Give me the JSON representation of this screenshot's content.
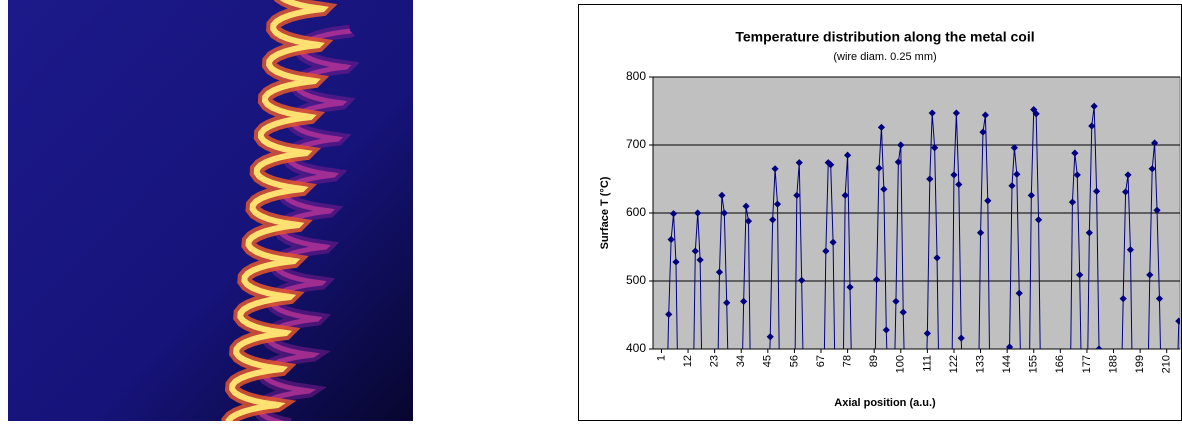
{
  "chart_data": {
    "type": "line",
    "title": "Temperature distribution along the metal coil",
    "subtitle": "(wire diam. 0.25 mm)",
    "x_label": "Axial position (a.u.)",
    "y_label": "Surface T (°C)",
    "color": "#000080",
    "marker": "diamond",
    "plot_background": "#c0c0c0",
    "grid": true,
    "xlim": [
      -2.5,
      215.5
    ],
    "xticks": [
      1,
      12,
      23,
      34,
      45,
      56,
      67,
      78,
      89,
      100,
      111,
      122,
      133,
      144,
      155,
      166,
      177,
      188,
      199,
      210
    ],
    "ylim": [
      400,
      800
    ],
    "yticks": [
      400,
      500,
      600,
      700,
      800
    ],
    "x": [
      3,
      4,
      5,
      6,
      7,
      8,
      14,
      15,
      16,
      17,
      18,
      24,
      25,
      26,
      27,
      28,
      29,
      34,
      35,
      36,
      37,
      38,
      45,
      46,
      47,
      48,
      49,
      50,
      56,
      57,
      58,
      59,
      60,
      68,
      69,
      70,
      71,
      72,
      73,
      76,
      77,
      78,
      79,
      80,
      89,
      90,
      91,
      92,
      93,
      94,
      95,
      97,
      98,
      99,
      100,
      101,
      102,
      110,
      111,
      112,
      113,
      114,
      115,
      116,
      121,
      122,
      123,
      124,
      125,
      126,
      132,
      133,
      134,
      135,
      136,
      137,
      144,
      145,
      146,
      147,
      148,
      149,
      150,
      153,
      154,
      155,
      156,
      157,
      158,
      170,
      171,
      172,
      173,
      174,
      175,
      177,
      178,
      179,
      180,
      181,
      182,
      183,
      191,
      192,
      193,
      194,
      195,
      196,
      202,
      203,
      204,
      205,
      206,
      207,
      208,
      214,
      215
    ],
    "values": [
      300,
      451,
      561,
      599,
      528,
      300,
      300,
      544,
      600,
      531,
      300,
      300,
      513,
      626,
      600,
      468,
      300,
      300,
      470,
      610,
      588,
      300,
      300,
      418,
      590,
      665,
      613,
      300,
      300,
      626,
      674,
      501,
      300,
      300,
      544,
      674,
      671,
      557,
      300,
      300,
      626,
      685,
      491,
      300,
      300,
      502,
      666,
      726,
      635,
      428,
      300,
      300,
      470,
      675,
      700,
      454,
      300,
      300,
      423,
      650,
      747,
      696,
      534,
      300,
      300,
      656,
      747,
      642,
      416,
      300,
      300,
      571,
      719,
      744,
      618,
      300,
      300,
      403,
      640,
      696,
      657,
      482,
      300,
      300,
      626,
      752,
      746,
      590,
      300,
      300,
      616,
      688,
      656,
      509,
      300,
      300,
      571,
      728,
      757,
      632,
      400,
      300,
      300,
      474,
      631,
      656,
      546,
      300,
      300,
      509,
      665,
      703,
      604,
      474,
      300,
      300,
      441
    ]
  }
}
